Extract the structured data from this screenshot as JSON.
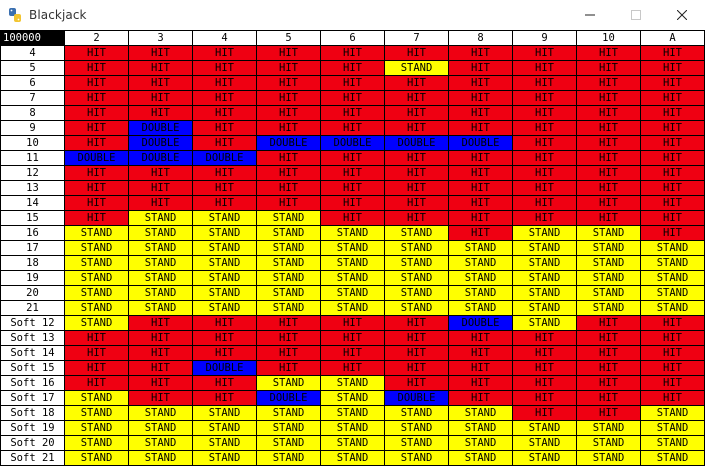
{
  "window": {
    "title": "Blackjack",
    "app_icon": "python-snake-icon",
    "controls": [
      "minimize",
      "maximize",
      "close"
    ]
  },
  "colors": {
    "hit": "#ef0012",
    "stand": "#ffff00",
    "double": "#0000ff",
    "corner": "#000000"
  },
  "table": {
    "corner_label": "100000",
    "dealer_cards": [
      "2",
      "3",
      "4",
      "5",
      "6",
      "7",
      "8",
      "9",
      "10",
      "A"
    ],
    "rows": [
      {
        "label": "4",
        "actions": [
          "HIT",
          "HIT",
          "HIT",
          "HIT",
          "HIT",
          "HIT",
          "HIT",
          "HIT",
          "HIT",
          "HIT"
        ]
      },
      {
        "label": "5",
        "actions": [
          "HIT",
          "HIT",
          "HIT",
          "HIT",
          "HIT",
          "STAND",
          "HIT",
          "HIT",
          "HIT",
          "HIT"
        ]
      },
      {
        "label": "6",
        "actions": [
          "HIT",
          "HIT",
          "HIT",
          "HIT",
          "HIT",
          "HIT",
          "HIT",
          "HIT",
          "HIT",
          "HIT"
        ]
      },
      {
        "label": "7",
        "actions": [
          "HIT",
          "HIT",
          "HIT",
          "HIT",
          "HIT",
          "HIT",
          "HIT",
          "HIT",
          "HIT",
          "HIT"
        ]
      },
      {
        "label": "8",
        "actions": [
          "HIT",
          "HIT",
          "HIT",
          "HIT",
          "HIT",
          "HIT",
          "HIT",
          "HIT",
          "HIT",
          "HIT"
        ]
      },
      {
        "label": "9",
        "actions": [
          "HIT",
          "DOUBLE",
          "HIT",
          "HIT",
          "HIT",
          "HIT",
          "HIT",
          "HIT",
          "HIT",
          "HIT"
        ]
      },
      {
        "label": "10",
        "actions": [
          "HIT",
          "DOUBLE",
          "HIT",
          "DOUBLE",
          "DOUBLE",
          "DOUBLE",
          "DOUBLE",
          "HIT",
          "HIT",
          "HIT"
        ]
      },
      {
        "label": "11",
        "actions": [
          "DOUBLE",
          "DOUBLE",
          "DOUBLE",
          "HIT",
          "HIT",
          "HIT",
          "HIT",
          "HIT",
          "HIT",
          "HIT"
        ]
      },
      {
        "label": "12",
        "actions": [
          "HIT",
          "HIT",
          "HIT",
          "HIT",
          "HIT",
          "HIT",
          "HIT",
          "HIT",
          "HIT",
          "HIT"
        ]
      },
      {
        "label": "13",
        "actions": [
          "HIT",
          "HIT",
          "HIT",
          "HIT",
          "HIT",
          "HIT",
          "HIT",
          "HIT",
          "HIT",
          "HIT"
        ]
      },
      {
        "label": "14",
        "actions": [
          "HIT",
          "HIT",
          "HIT",
          "HIT",
          "HIT",
          "HIT",
          "HIT",
          "HIT",
          "HIT",
          "HIT"
        ]
      },
      {
        "label": "15",
        "actions": [
          "HIT",
          "STAND",
          "STAND",
          "STAND",
          "HIT",
          "HIT",
          "HIT",
          "HIT",
          "HIT",
          "HIT"
        ]
      },
      {
        "label": "16",
        "actions": [
          "STAND",
          "STAND",
          "STAND",
          "STAND",
          "STAND",
          "STAND",
          "HIT",
          "STAND",
          "STAND",
          "HIT"
        ]
      },
      {
        "label": "17",
        "actions": [
          "STAND",
          "STAND",
          "STAND",
          "STAND",
          "STAND",
          "STAND",
          "STAND",
          "STAND",
          "STAND",
          "STAND"
        ]
      },
      {
        "label": "18",
        "actions": [
          "STAND",
          "STAND",
          "STAND",
          "STAND",
          "STAND",
          "STAND",
          "STAND",
          "STAND",
          "STAND",
          "STAND"
        ]
      },
      {
        "label": "19",
        "actions": [
          "STAND",
          "STAND",
          "STAND",
          "STAND",
          "STAND",
          "STAND",
          "STAND",
          "STAND",
          "STAND",
          "STAND"
        ]
      },
      {
        "label": "20",
        "actions": [
          "STAND",
          "STAND",
          "STAND",
          "STAND",
          "STAND",
          "STAND",
          "STAND",
          "STAND",
          "STAND",
          "STAND"
        ]
      },
      {
        "label": "21",
        "actions": [
          "STAND",
          "STAND",
          "STAND",
          "STAND",
          "STAND",
          "STAND",
          "STAND",
          "STAND",
          "STAND",
          "STAND"
        ]
      },
      {
        "label": "Soft 12",
        "actions": [
          "STAND",
          "HIT",
          "HIT",
          "HIT",
          "HIT",
          "HIT",
          "DOUBLE",
          "STAND",
          "HIT",
          "HIT"
        ]
      },
      {
        "label": "Soft 13",
        "actions": [
          "HIT",
          "HIT",
          "HIT",
          "HIT",
          "HIT",
          "HIT",
          "HIT",
          "HIT",
          "HIT",
          "HIT"
        ]
      },
      {
        "label": "Soft 14",
        "actions": [
          "HIT",
          "HIT",
          "HIT",
          "HIT",
          "HIT",
          "HIT",
          "HIT",
          "HIT",
          "HIT",
          "HIT"
        ]
      },
      {
        "label": "Soft 15",
        "actions": [
          "HIT",
          "HIT",
          "DOUBLE",
          "HIT",
          "HIT",
          "HIT",
          "HIT",
          "HIT",
          "HIT",
          "HIT"
        ]
      },
      {
        "label": "Soft 16",
        "actions": [
          "HIT",
          "HIT",
          "HIT",
          "STAND",
          "STAND",
          "HIT",
          "HIT",
          "HIT",
          "HIT",
          "HIT"
        ]
      },
      {
        "label": "Soft 17",
        "actions": [
          "STAND",
          "HIT",
          "HIT",
          "DOUBLE",
          "STAND",
          "DOUBLE",
          "HIT",
          "HIT",
          "HIT",
          "HIT"
        ]
      },
      {
        "label": "Soft 18",
        "actions": [
          "STAND",
          "STAND",
          "STAND",
          "STAND",
          "STAND",
          "STAND",
          "STAND",
          "HIT",
          "HIT",
          "STAND"
        ]
      },
      {
        "label": "Soft 19",
        "actions": [
          "STAND",
          "STAND",
          "STAND",
          "STAND",
          "STAND",
          "STAND",
          "STAND",
          "STAND",
          "STAND",
          "STAND"
        ]
      },
      {
        "label": "Soft 20",
        "actions": [
          "STAND",
          "STAND",
          "STAND",
          "STAND",
          "STAND",
          "STAND",
          "STAND",
          "STAND",
          "STAND",
          "STAND"
        ]
      },
      {
        "label": "Soft 21",
        "actions": [
          "STAND",
          "STAND",
          "STAND",
          "STAND",
          "STAND",
          "STAND",
          "STAND",
          "STAND",
          "STAND",
          "STAND"
        ]
      }
    ]
  }
}
